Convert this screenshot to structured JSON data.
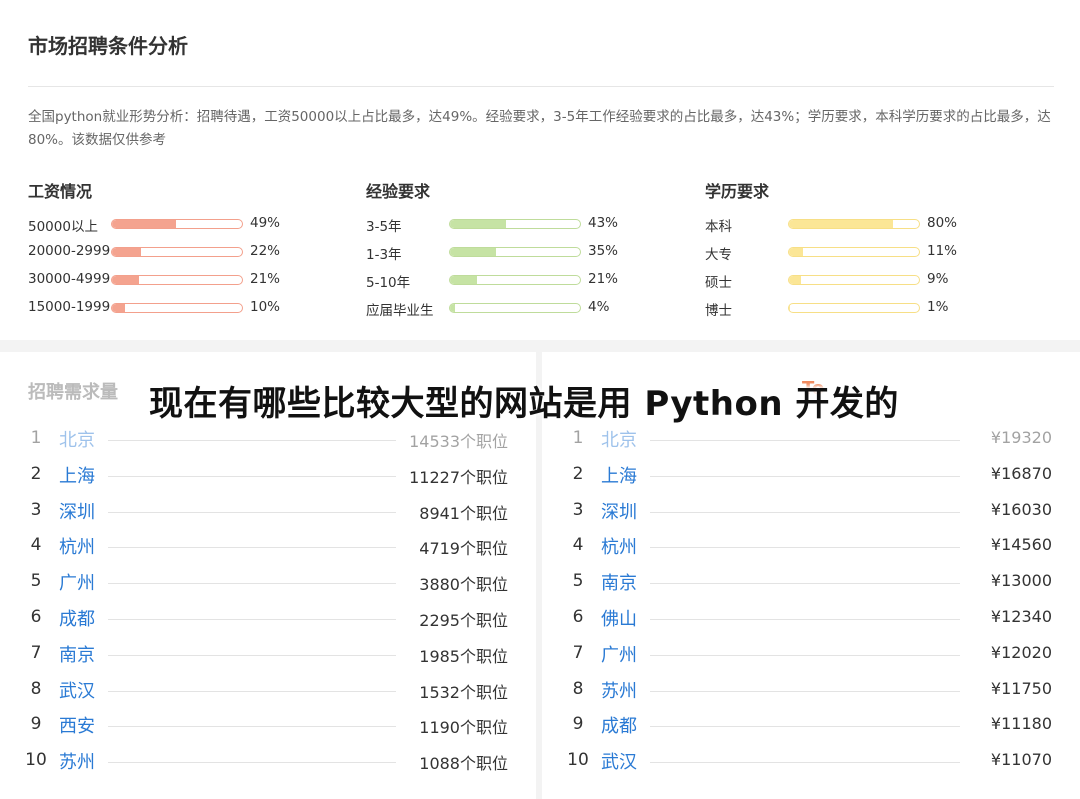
{
  "top": {
    "title": "市场招聘条件分析",
    "summary": "全国python就业形势分析：招聘待遇，工资50000以上占比最多，达49%。经验要求，3-5年工作经验要求的占比最多，达43%；学历要求，本科学历要求的占比最多，达80%。该数据仅供参考"
  },
  "colors": {
    "salary": "#f4a38f",
    "salary_border": "#f3a08c",
    "experience": "#c6e3a4",
    "experience_border": "#bfdc9b",
    "education": "#fbe696",
    "education_border": "#f7df86"
  },
  "overlay": {
    "title": "现在有哪些比较大型的网站是用 Python 开发的"
  },
  "chart_data": [
    {
      "type": "bar",
      "title": "工资情况",
      "categories": [
        "50000以上",
        "20000-2999",
        "30000-4999",
        "15000-1999"
      ],
      "values": [
        49,
        22,
        21,
        10
      ],
      "labels": [
        "49%",
        "22%",
        "21%",
        "10%"
      ],
      "ylim": [
        0,
        100
      ]
    },
    {
      "type": "bar",
      "title": "经验要求",
      "categories": [
        "3-5年",
        "1-3年",
        "5-10年",
        "应届毕业生"
      ],
      "values": [
        43,
        35,
        21,
        4
      ],
      "labels": [
        "43%",
        "35%",
        "21%",
        "4%"
      ],
      "ylim": [
        0,
        100
      ]
    },
    {
      "type": "bar",
      "title": "学历要求",
      "categories": [
        "本科",
        "大专",
        "硕士",
        "博士"
      ],
      "values": [
        80,
        11,
        9,
        1
      ],
      "labels": [
        "80%",
        "11%",
        "9%",
        "1%"
      ],
      "ylim": [
        0,
        100
      ]
    },
    {
      "type": "table",
      "title_visible": "招聘需求量",
      "rows": [
        {
          "rank": "1",
          "city": "北京",
          "value": "14533个职位"
        },
        {
          "rank": "2",
          "city": "上海",
          "value": "11227个职位"
        },
        {
          "rank": "3",
          "city": "深圳",
          "value": "8941个职位"
        },
        {
          "rank": "4",
          "city": "杭州",
          "value": "4719个职位"
        },
        {
          "rank": "5",
          "city": "广州",
          "value": "3880个职位"
        },
        {
          "rank": "6",
          "city": "成都",
          "value": "2295个职位"
        },
        {
          "rank": "7",
          "city": "南京",
          "value": "1985个职位"
        },
        {
          "rank": "8",
          "city": "武汉",
          "value": "1532个职位"
        },
        {
          "rank": "9",
          "city": "西安",
          "value": "1190个职位"
        },
        {
          "rank": "10",
          "city": "苏州",
          "value": "1088个职位"
        }
      ]
    },
    {
      "type": "table",
      "title_visible": "To",
      "rows": [
        {
          "rank": "1",
          "city": "北京",
          "value": "¥19320"
        },
        {
          "rank": "2",
          "city": "上海",
          "value": "¥16870"
        },
        {
          "rank": "3",
          "city": "深圳",
          "value": "¥16030"
        },
        {
          "rank": "4",
          "city": "杭州",
          "value": "¥14560"
        },
        {
          "rank": "5",
          "city": "南京",
          "value": "¥13000"
        },
        {
          "rank": "6",
          "city": "佛山",
          "value": "¥12340"
        },
        {
          "rank": "7",
          "city": "广州",
          "value": "¥12020"
        },
        {
          "rank": "8",
          "city": "苏州",
          "value": "¥11750"
        },
        {
          "rank": "9",
          "city": "成都",
          "value": "¥11180"
        },
        {
          "rank": "10",
          "city": "武汉",
          "value": "¥11070"
        }
      ]
    }
  ]
}
